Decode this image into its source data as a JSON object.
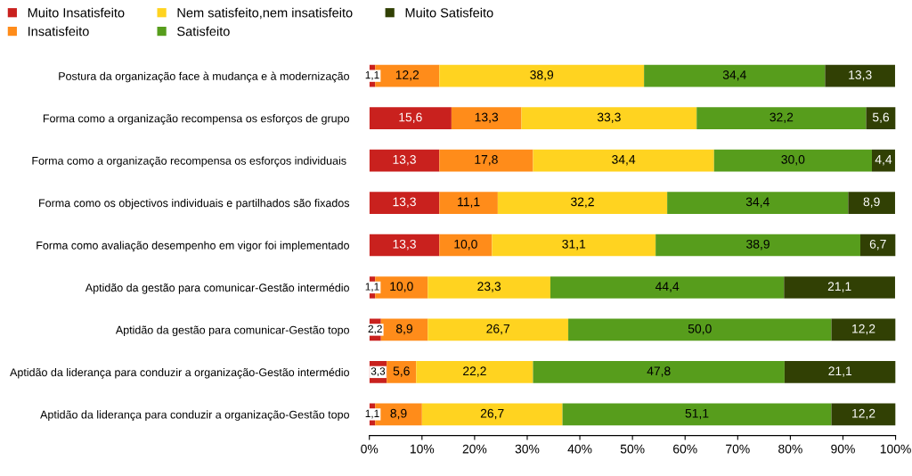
{
  "chart_data": {
    "type": "bar",
    "orientation": "horizontal",
    "stacked": true,
    "categories": [
      "Postura da organização face à mudança e à modernização",
      "Forma como a organização recompensa os esforços de grupo",
      "Forma como a organização recompensa os esforços individuais ",
      "Forma como os objectivos individuais e partilhados são fixados",
      "Forma como avaliação desempenho em vigor foi implementado",
      "Aptidão da gestão para comunicar-Gestão intermédio",
      "Aptidão da gestão para comunicar-Gestão topo",
      "Aptidão da liderança para conduzir a organização-Gestão intermédio",
      "Aptidão da liderança para conduzir a organização-Gestão topo"
    ],
    "series": [
      {
        "name": "Muito Insatisfeito",
        "color": "#c9211e",
        "values": [
          1.1,
          15.6,
          13.3,
          13.3,
          13.3,
          1.1,
          2.2,
          3.3,
          1.1
        ],
        "value_labels": [
          "1,1",
          "15,6",
          "13,3",
          "13,3",
          "13,3",
          "1,1",
          "2,2",
          "3,3",
          "1,1"
        ]
      },
      {
        "name": "Insatisfeito",
        "color": "#ff8c1a",
        "values": [
          12.2,
          13.3,
          17.8,
          11.1,
          10.0,
          10.0,
          8.9,
          5.6,
          8.9
        ],
        "value_labels": [
          "12,2",
          "13,3",
          "17,8",
          "11,1",
          "10,0",
          "10,0",
          "8,9",
          "5,6",
          "8,9"
        ]
      },
      {
        "name": "Nem satisfeito,nem insatisfeito",
        "color": "#ffd320",
        "values": [
          38.9,
          33.3,
          34.4,
          32.2,
          31.1,
          23.3,
          26.7,
          22.2,
          26.7
        ],
        "value_labels": [
          "38,9",
          "33,3",
          "34,4",
          "32,2",
          "31,1",
          "23,3",
          "26,7",
          "22,2",
          "26,7"
        ]
      },
      {
        "name": "Satisfeito",
        "color": "#579d1c",
        "values": [
          34.4,
          32.2,
          30.0,
          34.4,
          38.9,
          44.4,
          50.0,
          47.8,
          51.1
        ],
        "value_labels": [
          "34,4",
          "32,2",
          "30,0",
          "34,4",
          "38,9",
          "44,4",
          "50,0",
          "47,8",
          "51,1"
        ]
      },
      {
        "name": "Muito Satisfeito",
        "color": "#314004",
        "values": [
          13.3,
          5.6,
          4.4,
          8.9,
          6.7,
          21.1,
          12.2,
          21.1,
          12.2
        ],
        "value_labels": [
          "13,3",
          "5,6",
          "4,4",
          "8,9",
          "6,7",
          "21,1",
          "12,2",
          "21,1",
          "12,2"
        ]
      }
    ],
    "xlim": [
      0,
      100
    ],
    "xticks": [
      {
        "value": 0,
        "label": "0%"
      },
      {
        "value": 10,
        "label": "10%"
      },
      {
        "value": 20,
        "label": "20%"
      },
      {
        "value": 30,
        "label": "30%"
      },
      {
        "value": 40,
        "label": "40%"
      },
      {
        "value": 50,
        "label": "50%"
      },
      {
        "value": 60,
        "label": "60%"
      },
      {
        "value": 70,
        "label": "70%"
      },
      {
        "value": 80,
        "label": "80%"
      },
      {
        "value": 90,
        "label": "90%"
      },
      {
        "value": 100,
        "label": "100%"
      }
    ],
    "grid": false,
    "legend": "top left"
  }
}
